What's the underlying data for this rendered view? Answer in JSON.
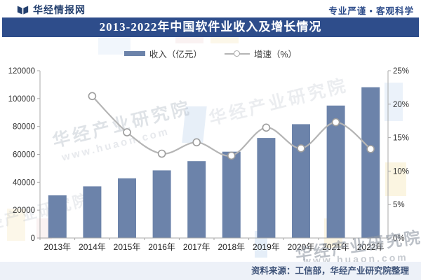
{
  "header": {
    "brand": "华经情报网",
    "slogan": "专业严谨 • 客观科学"
  },
  "title": "2013-2022年中国软件业收入及增长情况",
  "legend": [
    {
      "label": "收入（亿元）",
      "swatch": "bar"
    },
    {
      "label": "增速（%）",
      "swatch": "line-marker"
    }
  ],
  "chart_data": {
    "type": "combo-bar-line",
    "categories": [
      "2013年",
      "2014年",
      "2015年",
      "2016年",
      "2017年",
      "2018年",
      "2019年",
      "2020年",
      "2021年",
      "2022年"
    ],
    "series": [
      {
        "name": "收入（亿元）",
        "type": "bar",
        "axis": "left",
        "values": [
          30587,
          37026,
          42848,
          48511,
          55143,
          61908,
          71768,
          81616,
          94994,
          108126
        ]
      },
      {
        "name": "增速（%）",
        "type": "line",
        "axis": "right",
        "values": [
          null,
          21.2,
          15.8,
          12.6,
          14.3,
          12.3,
          16.5,
          13.4,
          17.3,
          13.3
        ]
      }
    ],
    "left_axis": {
      "min": 0,
      "max": 120000,
      "step": 20000,
      "tick_labels": [
        "0",
        "20000",
        "40000",
        "60000",
        "80000",
        "100000",
        "120000"
      ]
    },
    "right_axis": {
      "min": 0,
      "max": 25,
      "step": 5,
      "tick_labels": [
        "0%",
        "5%",
        "10%",
        "15%",
        "20%",
        "25%"
      ]
    },
    "grid": false,
    "legend_position": "top-center",
    "title": "2013-2022年中国软件业收入及增长情况"
  },
  "colors": {
    "bar": "#6c83aa",
    "line": "#b5b5b5",
    "marker_fill": "#ffffff",
    "marker_stroke": "#9c9c9c",
    "banner": "#2e4d8b",
    "brand_navy": "#24406f",
    "axis": "#a9a9a9",
    "tick_text": "#333333",
    "footer_bg": "#edf1f8",
    "footer_text": "#3d5278"
  },
  "footer": {
    "source": "资料来源：工信部，华经产业研究院整理"
  },
  "watermark": {
    "name": "华经产业研究院",
    "url": "www.huaon.com"
  }
}
